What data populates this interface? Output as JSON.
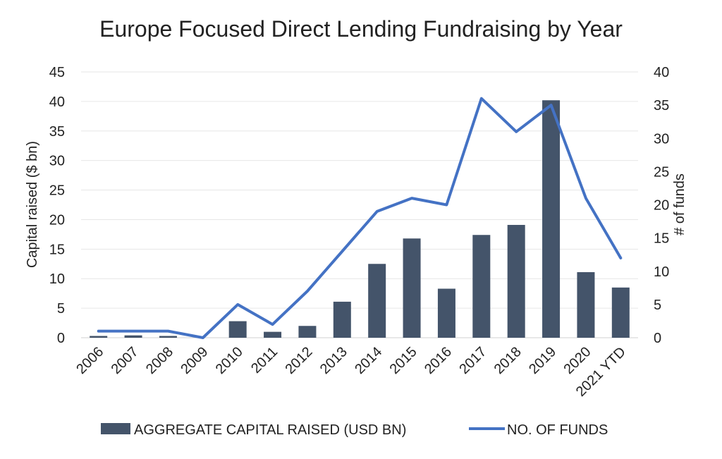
{
  "chart_data": {
    "type": "bar",
    "title": "Europe Focused Direct Lending Fundraising by Year",
    "categories": [
      "2006",
      "2007",
      "2008",
      "2009",
      "2010",
      "2011",
      "2012",
      "2013",
      "2014",
      "2015",
      "2016",
      "2017",
      "2018",
      "2019",
      "2020",
      "2021 YTD"
    ],
    "series": [
      {
        "name": "AGGREGATE CAPITAL RAISED (USD BN)",
        "type": "bar",
        "axis": "left",
        "color": "#44546a",
        "values": [
          0.3,
          0.4,
          0.3,
          0,
          2.8,
          1.0,
          2.0,
          6.1,
          12.5,
          16.8,
          8.3,
          17.4,
          19.1,
          40.2,
          11.1,
          8.5
        ]
      },
      {
        "name": "NO. OF FUNDS",
        "type": "line",
        "axis": "right",
        "color": "#4472c4",
        "values": [
          1,
          1,
          1,
          0,
          5,
          2,
          7,
          13,
          19,
          21,
          20,
          36,
          31,
          35,
          21,
          12
        ]
      }
    ],
    "ylabel": "Capital raised ($ bn)",
    "ylim": [
      0,
      45
    ],
    "yticks": [
      "0",
      "5",
      "10",
      "15",
      "20",
      "25",
      "30",
      "35",
      "40",
      "45"
    ],
    "y2label": "# of funds",
    "y2lim": [
      0,
      40
    ],
    "y2ticks": [
      "0",
      "5",
      "10",
      "15",
      "20",
      "25",
      "30",
      "35",
      "40"
    ],
    "grid": true,
    "legend_position": "bottom"
  }
}
